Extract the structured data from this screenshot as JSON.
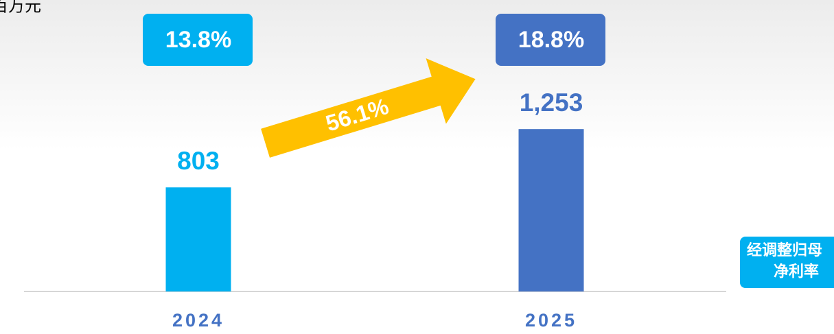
{
  "chart_data": {
    "type": "bar",
    "unit": "百万元",
    "categories": [
      "2024",
      "2025"
    ],
    "values": [
      803,
      1253
    ],
    "value_labels": [
      "803",
      "1,253"
    ],
    "colors": [
      "#00b0f0",
      "#4472c4"
    ],
    "margin_labels": [
      "13.8%",
      "18.8%"
    ],
    "growth_label": "56.1%",
    "growth_color": "#ffc000",
    "side_label": [
      "经调整归母",
      "净利率"
    ],
    "side_color": "#00b0f0"
  }
}
